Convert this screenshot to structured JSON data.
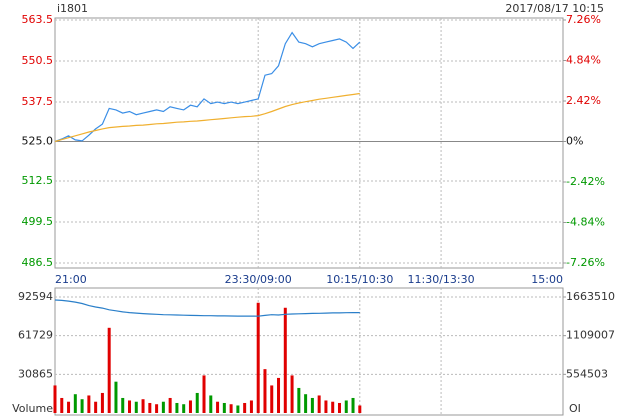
{
  "chart_data": [
    {
      "type": "line",
      "title": "i1801",
      "subtitle": "2017/08/17 10:15",
      "up_color": "#e00000",
      "down_color": "#009900",
      "flat_color": "#111111",
      "x": [
        0,
        5,
        10,
        15,
        20,
        25,
        30,
        35,
        40,
        45,
        50,
        55,
        60,
        65,
        70,
        75,
        80,
        85,
        90,
        95,
        100,
        105,
        110,
        115,
        120,
        125,
        130,
        135,
        140,
        145,
        150,
        155,
        160,
        165,
        170,
        175,
        180,
        185,
        190,
        195,
        200,
        205,
        210,
        215,
        220,
        225
      ],
      "series": [
        {
          "color": "#3a8ee6",
          "values": [
            525.0,
            525.8,
            526.8,
            525.5,
            525.2,
            527.0,
            529.0,
            530.5,
            535.5,
            535.0,
            534.0,
            534.5,
            533.5,
            534.0,
            534.5,
            535.0,
            534.5,
            536.0,
            535.5,
            535.0,
            536.5,
            536.0,
            538.5,
            537.0,
            537.5,
            537.0,
            537.5,
            537.0,
            537.5,
            538.0,
            538.5,
            546.0,
            546.5,
            549.0,
            556.0,
            559.5,
            556.5,
            556.0,
            555.0,
            556.0,
            556.5,
            557.0,
            557.5,
            556.5,
            554.5,
            556.5
          ]
        },
        {
          "color": "#f0b030",
          "values": [
            525.0,
            525.6,
            526.2,
            526.8,
            527.4,
            528.0,
            528.5,
            529.0,
            529.4,
            529.6,
            529.8,
            529.9,
            530.1,
            530.2,
            530.4,
            530.6,
            530.7,
            530.9,
            531.1,
            531.2,
            531.4,
            531.5,
            531.7,
            531.9,
            532.1,
            532.3,
            532.5,
            532.7,
            532.9,
            533.0,
            533.2,
            533.8,
            534.5,
            535.3,
            536.1,
            536.7,
            537.2,
            537.6,
            538.0,
            538.4,
            538.7,
            539.0,
            539.3,
            539.6,
            539.9,
            540.2
          ]
        }
      ],
      "xlim": [
        0,
        375
      ],
      "xticks": [
        {
          "value": 0,
          "label": "21:00"
        },
        {
          "value": 150,
          "label": "23:30/09:00"
        },
        {
          "value": 225,
          "label": "10:15/10:30"
        },
        {
          "value": 285,
          "label": "11:30/13:30"
        },
        {
          "value": 375,
          "label": "15:00"
        }
      ],
      "ylim": [
        486.5,
        563.5
      ],
      "yticks": [
        563.5,
        550.5,
        537.5,
        {
          "value": 525,
          "label": "525.0"
        },
        512.5,
        499.5,
        486.5
      ],
      "y2lim": [
        -7.26,
        7.26
      ],
      "y2ticks": [
        {
          "value": 7.26,
          "label": "7.26%"
        },
        {
          "value": 4.84,
          "label": "4.84%"
        },
        {
          "value": 2.42,
          "label": "2.42%"
        },
        {
          "value": 0,
          "label": "0%"
        },
        {
          "value": -2.42,
          "label": "-2.42%"
        },
        {
          "value": -4.84,
          "label": "-4.84%"
        },
        {
          "value": -7.26,
          "label": "-7.26%"
        }
      ],
      "grid": true
    },
    {
      "type": "bar",
      "x": [
        0,
        5,
        10,
        15,
        20,
        25,
        30,
        35,
        40,
        45,
        50,
        55,
        60,
        65,
        70,
        75,
        80,
        85,
        90,
        95,
        100,
        105,
        110,
        115,
        120,
        125,
        130,
        135,
        140,
        145,
        150,
        155,
        160,
        165,
        170,
        175,
        180,
        185,
        190,
        195,
        200,
        205,
        210,
        215,
        220,
        225
      ],
      "series": [
        {
          "name": "Volume",
          "values": [
            22000,
            12000,
            9000,
            15000,
            11000,
            14000,
            9000,
            16000,
            68000,
            25000,
            12000,
            10000,
            9000,
            11000,
            8000,
            7000,
            9000,
            12000,
            8000,
            7000,
            10000,
            16000,
            30000,
            14000,
            9000,
            8000,
            7000,
            6000,
            8000,
            10000,
            88000,
            35000,
            22000,
            28000,
            84000,
            30000,
            20000,
            15000,
            12000,
            14000,
            10000,
            9000,
            8000,
            10000,
            12000,
            6000
          ],
          "colors": [
            "#e00000",
            "#e00000",
            "#e00000",
            "#009900",
            "#009900",
            "#e00000",
            "#e00000",
            "#e00000",
            "#e00000",
            "#009900",
            "#009900",
            "#e00000",
            "#009900",
            "#e00000",
            "#e00000",
            "#e00000",
            "#009900",
            "#e00000",
            "#009900",
            "#009900",
            "#e00000",
            "#009900",
            "#e00000",
            "#009900",
            "#e00000",
            "#009900",
            "#e00000",
            "#009900",
            "#e00000",
            "#e00000",
            "#e00000",
            "#e00000",
            "#e00000",
            "#e00000",
            "#e00000",
            "#e00000",
            "#009900",
            "#009900",
            "#009900",
            "#e00000",
            "#e00000",
            "#e00000",
            "#e00000",
            "#009900",
            "#009900",
            "#e00000"
          ]
        },
        {
          "name": "OI",
          "axis": "y2",
          "color": "#2a7fc9",
          "values": [
            1620000,
            1615000,
            1605000,
            1590000,
            1570000,
            1540000,
            1520000,
            1505000,
            1480000,
            1465000,
            1450000,
            1440000,
            1432000,
            1425000,
            1420000,
            1415000,
            1410000,
            1408000,
            1405000,
            1402000,
            1400000,
            1398000,
            1396000,
            1395000,
            1393000,
            1392000,
            1391000,
            1390000,
            1390000,
            1389000,
            1388000,
            1400000,
            1410000,
            1405000,
            1415000,
            1420000,
            1422000,
            1425000,
            1428000,
            1430000,
            1432000,
            1435000,
            1436000,
            1438000,
            1440000,
            1440000
          ]
        }
      ],
      "xlim": [
        0,
        375
      ],
      "ylim": [
        0,
        92594
      ],
      "yticks": [
        92594,
        61729,
        30865
      ],
      "y2lim": [
        0,
        1663510
      ],
      "y2ticks": [
        1663510,
        1109007,
        554503
      ]
    }
  ]
}
